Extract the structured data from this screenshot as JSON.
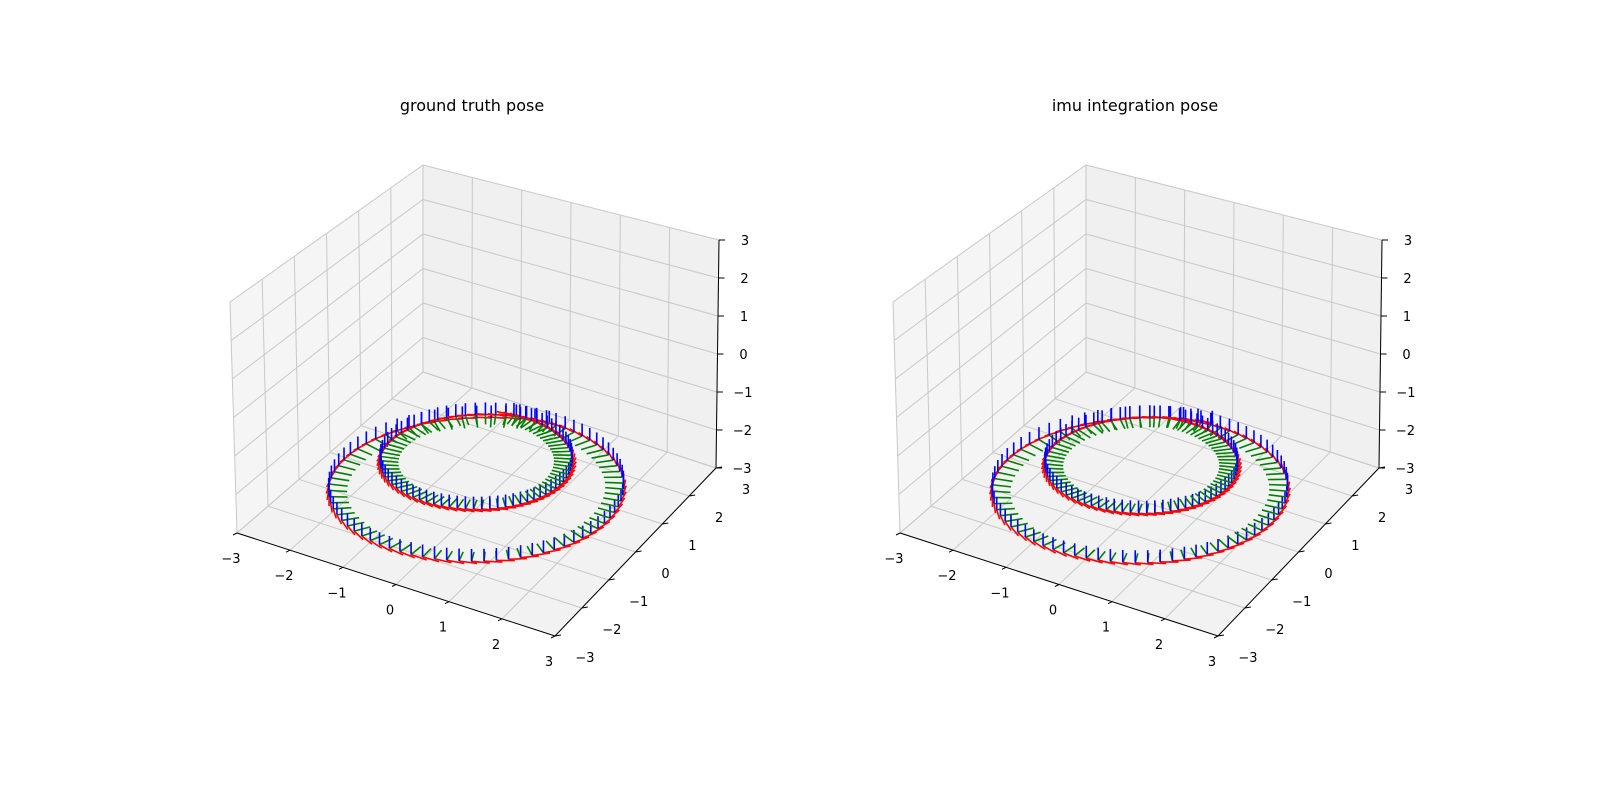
{
  "chart_data": [
    {
      "type": "3d-pose-trajectory",
      "title": "ground truth pose",
      "xlim": [
        -3,
        3
      ],
      "ylim": [
        -3,
        3
      ],
      "zlim": [
        -3,
        3
      ],
      "x_ticks": [
        "−3",
        "−2",
        "−1",
        "0",
        "1",
        "2",
        "3"
      ],
      "y_ticks": [
        "−3",
        "−2",
        "−1",
        "0",
        "1",
        "2",
        "3"
      ],
      "z_ticks": [
        "−3",
        "−2",
        "−1",
        "0",
        "1",
        "2",
        "3"
      ],
      "grid": true,
      "axis_colors": {
        "x_axis": "#ff0000",
        "y_axis": "#008000",
        "z_axis": "#0000ff"
      }
    },
    {
      "type": "3d-pose-trajectory",
      "title": "imu integration pose",
      "xlim": [
        -3,
        3
      ],
      "ylim": [
        -3,
        3
      ],
      "zlim": [
        -3,
        3
      ],
      "x_ticks": [
        "−3",
        "−2",
        "−1",
        "0",
        "1",
        "2",
        "3"
      ],
      "y_ticks": [
        "−3",
        "−2",
        "−1",
        "0",
        "1",
        "2",
        "3"
      ],
      "z_ticks": [
        "−3",
        "−2",
        "−1",
        "0",
        "1",
        "2",
        "3"
      ],
      "grid": true,
      "axis_colors": {
        "x_axis": "#ff0000",
        "y_axis": "#008000",
        "z_axis": "#0000ff"
      }
    }
  ]
}
